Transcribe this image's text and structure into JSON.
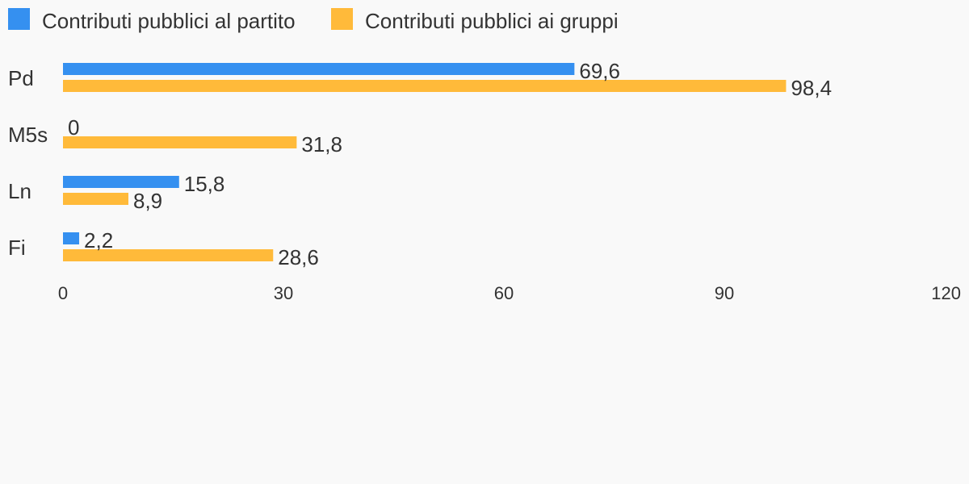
{
  "chart_data": {
    "type": "bar",
    "orientation": "horizontal",
    "categories": [
      "Pd",
      "M5s",
      "Ln",
      "Fi"
    ],
    "series": [
      {
        "name": "Contributi pubblici al partito",
        "color": "#3590f0",
        "values": [
          69.6,
          0,
          15.8,
          2.2
        ],
        "labels": [
          "69,6",
          "0",
          "15,8",
          "2,2"
        ]
      },
      {
        "name": "Contributi pubblici ai gruppi",
        "color": "#ffba3a",
        "values": [
          98.4,
          31.8,
          8.9,
          28.6
        ],
        "labels": [
          "98,4",
          "31,8",
          "8,9",
          "28,6"
        ]
      }
    ],
    "xlim": [
      0,
      120
    ],
    "xticks": [
      0,
      30,
      60,
      90,
      120
    ],
    "xtick_labels": [
      "0",
      "30",
      "60",
      "90",
      "120"
    ],
    "legend_position": "top-left",
    "grid": false
  }
}
